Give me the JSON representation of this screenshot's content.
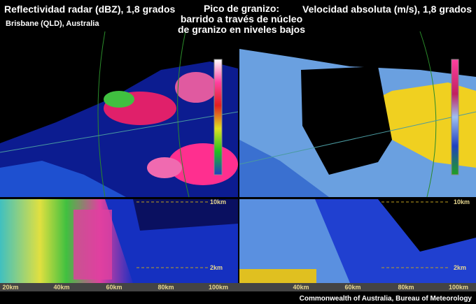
{
  "header": {
    "left_title": "Reflectividad radar (dBZ), 1,8 grados",
    "left_subtitle": "Brisbane (QLD), Australia",
    "center_title": [
      "Pico de granizo:",
      "barrido a través de núcleo",
      "de granizo en niveles bajos"
    ],
    "right_title": "Velocidad absoluta (m/s), 1,8 grados"
  },
  "panels": {
    "left": {
      "range_labels": [
        "20km",
        "40km",
        "60km",
        "80km",
        "100km"
      ],
      "height_labels": [
        "10km",
        "2km"
      ]
    },
    "right": {
      "range_labels": [
        "40km",
        "60km",
        "80km",
        "100km"
      ],
      "height_labels": [
        "10km",
        "2km"
      ]
    }
  },
  "footer": {
    "credit": "Commonwealth of Australia, Bureau of Meteorology"
  }
}
